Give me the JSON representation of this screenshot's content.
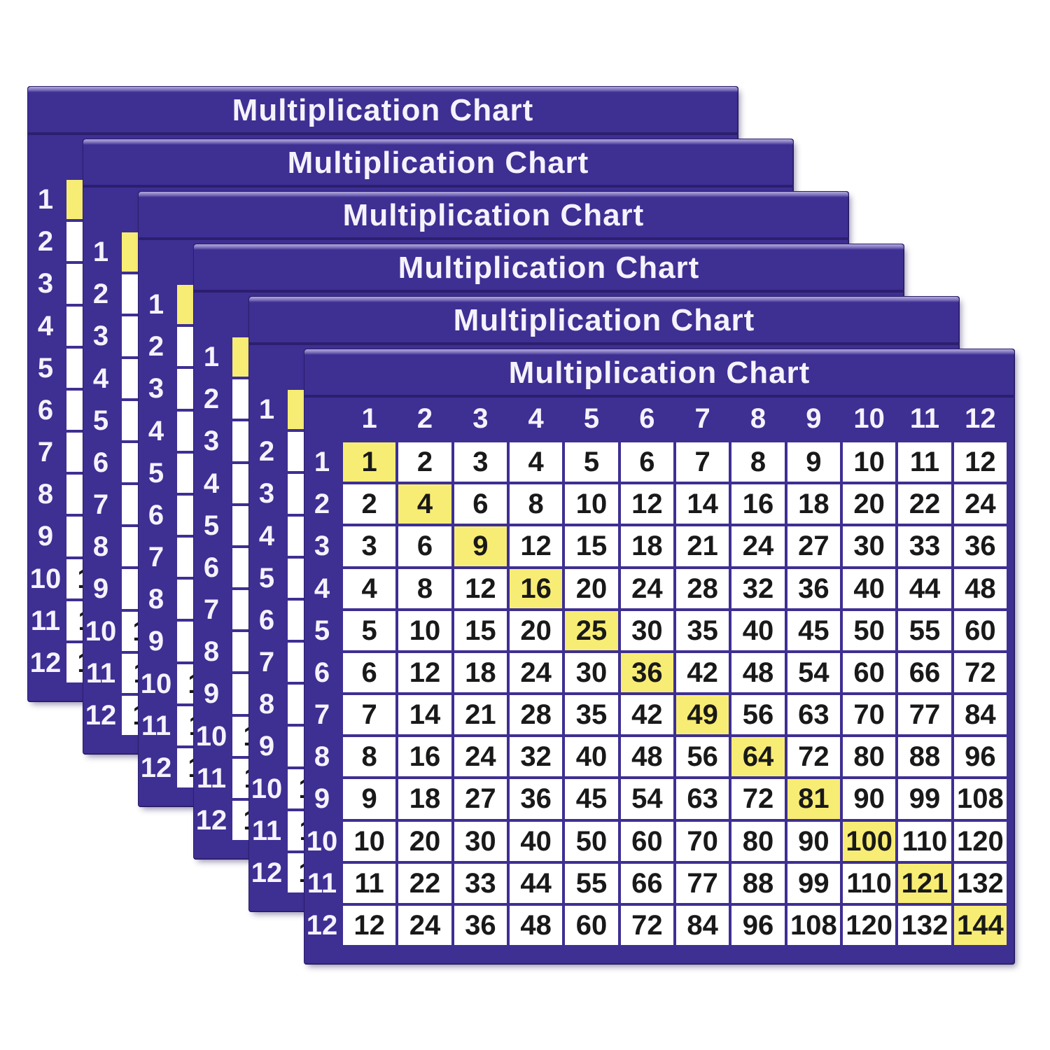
{
  "page": {
    "background_color": "#ffffff",
    "description": "Six identical multiplication chart cards stacked diagonally, front card fully visible"
  },
  "stack": {
    "card_count": 6,
    "card_title": "Multiplication Chart"
  },
  "colors": {
    "card_purple": "#3e2f93",
    "edge_shadow_dark": "#2b1f6e",
    "edge_highlight_light": "#b2aadd",
    "cell_background": "#ffffff",
    "diagonal_highlight_yellow": "#f8ed74",
    "cell_number_black": "#191919",
    "header_text_white": "#f5f2fc"
  },
  "chart_data": {
    "type": "table",
    "title": "Multiplication Chart",
    "column_headers": [
      "1",
      "2",
      "3",
      "4",
      "5",
      "6",
      "7",
      "8",
      "9",
      "10",
      "11",
      "12"
    ],
    "row_headers": [
      "1",
      "2",
      "3",
      "4",
      "5",
      "6",
      "7",
      "8",
      "9",
      "10",
      "11",
      "12"
    ],
    "values": [
      [
        1,
        2,
        3,
        4,
        5,
        6,
        7,
        8,
        9,
        10,
        11,
        12
      ],
      [
        2,
        4,
        6,
        8,
        10,
        12,
        14,
        16,
        18,
        20,
        22,
        24
      ],
      [
        3,
        6,
        9,
        12,
        15,
        18,
        21,
        24,
        27,
        30,
        33,
        36
      ],
      [
        4,
        8,
        12,
        16,
        20,
        24,
        28,
        32,
        36,
        40,
        44,
        48
      ],
      [
        5,
        10,
        15,
        20,
        25,
        30,
        35,
        40,
        45,
        50,
        55,
        60
      ],
      [
        6,
        12,
        18,
        24,
        30,
        36,
        42,
        48,
        54,
        60,
        66,
        72
      ],
      [
        7,
        14,
        21,
        28,
        35,
        42,
        49,
        56,
        63,
        70,
        77,
        84
      ],
      [
        8,
        16,
        24,
        32,
        40,
        48,
        56,
        64,
        72,
        80,
        88,
        96
      ],
      [
        9,
        18,
        27,
        36,
        45,
        54,
        63,
        72,
        81,
        90,
        99,
        108
      ],
      [
        10,
        20,
        30,
        40,
        50,
        60,
        70,
        80,
        90,
        100,
        110,
        120
      ],
      [
        11,
        22,
        33,
        44,
        55,
        66,
        77,
        88,
        99,
        110,
        121,
        132
      ],
      [
        12,
        24,
        36,
        48,
        60,
        72,
        84,
        96,
        108,
        120,
        132,
        144
      ]
    ],
    "highlighted_values": [
      1,
      4,
      9,
      16,
      25,
      36,
      49,
      64,
      81,
      100,
      121,
      144
    ],
    "highlight_rule": "diagonal square products (n x n) have yellow background",
    "legend_position": "none",
    "grid": true
  }
}
